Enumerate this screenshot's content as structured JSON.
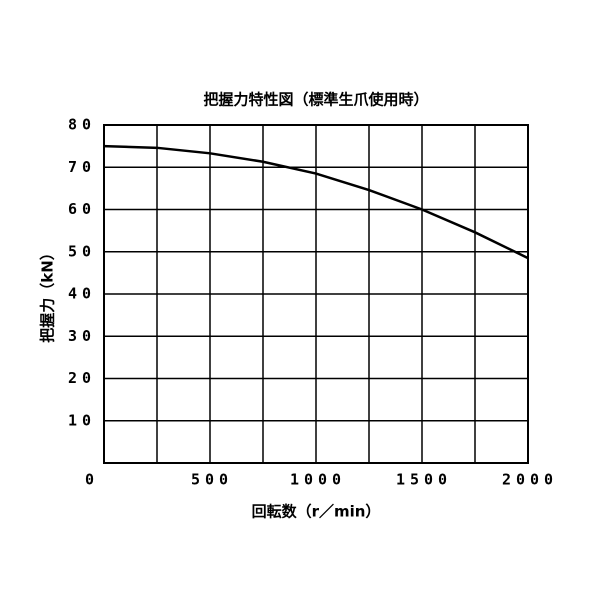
{
  "chart_data": {
    "type": "line",
    "title": "把握力特性図（標準生爪使用時）",
    "x_label": "回転数（r／min）",
    "y_label": "把握力（kN）",
    "x": [
      0,
      250,
      500,
      750,
      1000,
      1250,
      1500,
      1750,
      2000
    ],
    "values": [
      75,
      74.6,
      73.3,
      71.3,
      68.5,
      64.6,
      60,
      54.6,
      48.5
    ],
    "color": "#000000",
    "xlim": [
      0,
      2000
    ],
    "xticks": [
      0,
      500,
      1000,
      1500,
      2000
    ],
    "xgrid": [
      250,
      500,
      750,
      1000,
      1250,
      1500,
      1750
    ],
    "ylim": [
      0,
      80
    ],
    "yticks": [
      10,
      20,
      30,
      40,
      50,
      60,
      70,
      80
    ],
    "grid": true
  }
}
